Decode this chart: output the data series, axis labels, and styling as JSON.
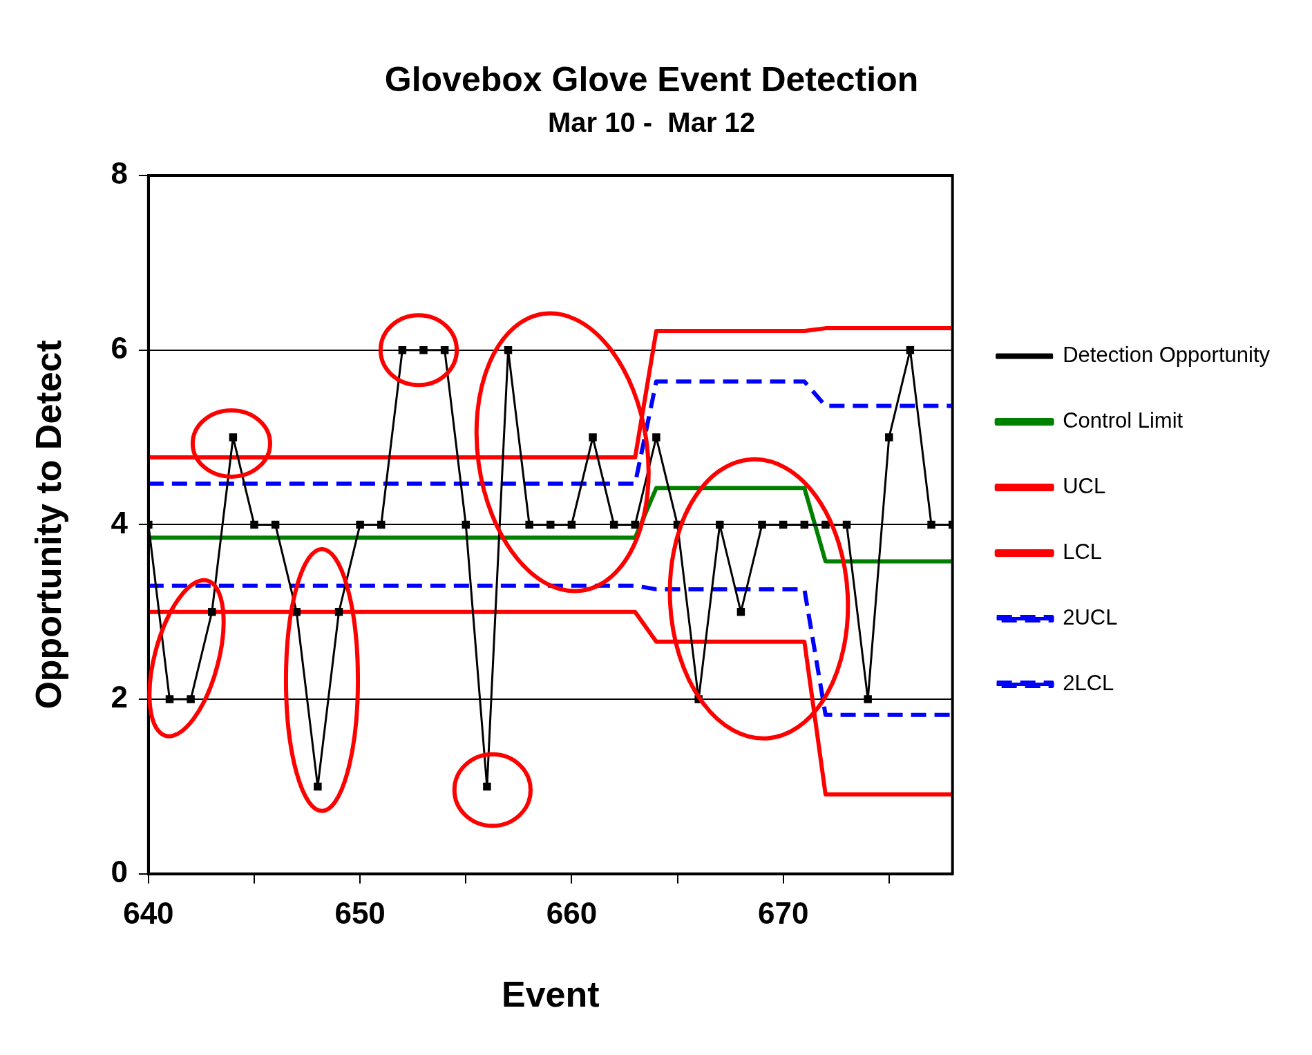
{
  "chart_data": {
    "type": "line",
    "title": "Glovebox Glove Event Detection",
    "subtitle": "Mar 10 -  Mar 12",
    "xlabel": "Event",
    "ylabel": "Opportunity to Detect",
    "x": [
      640,
      641,
      642,
      643,
      644,
      645,
      646,
      647,
      648,
      649,
      650,
      651,
      652,
      653,
      654,
      655,
      656,
      657,
      658,
      659,
      660,
      661,
      662,
      663,
      664,
      665,
      666,
      667,
      668,
      669,
      670,
      671,
      672,
      673,
      674,
      675,
      676,
      677,
      678
    ],
    "xlim": [
      640,
      678
    ],
    "xticks": [
      640,
      {
        "value": 645,
        "label": null
      },
      650,
      {
        "value": 655,
        "label": null
      },
      660,
      {
        "value": 665,
        "label": null
      },
      670,
      {
        "value": 675,
        "label": null
      }
    ],
    "ylim": [
      0,
      8
    ],
    "yticks": [
      0,
      2,
      4,
      6,
      8
    ],
    "grid": "y",
    "legend": "right",
    "series": [
      {
        "name": "Detection Opportunity",
        "color": "#000000",
        "marker": "square",
        "values": [
          4,
          2,
          2,
          3,
          5,
          4,
          4,
          3,
          1,
          3,
          4,
          4,
          6,
          6,
          6,
          4,
          1,
          6,
          4,
          4,
          4,
          5,
          4,
          4,
          5,
          4,
          2,
          4,
          3,
          4,
          4,
          4,
          4,
          4,
          2,
          5,
          6,
          4,
          4
        ]
      },
      {
        "name": "Control Limit",
        "color": "#008000",
        "marker": "none",
        "x": [
          640,
          663,
          664,
          671,
          672,
          678
        ],
        "values": [
          3.85,
          3.85,
          4.42,
          4.42,
          3.58,
          3.58
        ]
      },
      {
        "name": "UCL",
        "color": "#ff0000",
        "marker": "none",
        "x": [
          640,
          663,
          664,
          671,
          672,
          678
        ],
        "values": [
          4.77,
          4.77,
          6.22,
          6.22,
          6.25,
          6.25
        ]
      },
      {
        "name": "LCL",
        "color": "#ff0000",
        "marker": "none",
        "x": [
          640,
          663,
          664,
          671,
          672,
          678
        ],
        "values": [
          3.0,
          3.0,
          2.66,
          2.66,
          0.91,
          0.91
        ]
      },
      {
        "name": "2UCL",
        "color": "#0000ff",
        "marker": "none",
        "line_style": "dashed",
        "x": [
          640,
          663,
          664,
          671,
          672,
          678
        ],
        "values": [
          4.47,
          4.47,
          5.64,
          5.64,
          5.36,
          5.36
        ]
      },
      {
        "name": "2LCL",
        "color": "#0000ff",
        "marker": "none",
        "line_style": "dashed",
        "x": [
          640,
          663,
          664,
          671,
          672,
          678
        ],
        "values": [
          3.3,
          3.3,
          3.26,
          3.26,
          1.82,
          1.82
        ]
      }
    ]
  }
}
